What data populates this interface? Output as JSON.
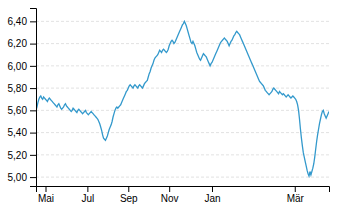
{
  "chart_data": {
    "type": "line",
    "color": "#3399cc",
    "grid": true,
    "ylim": [
      4.92,
      6.52
    ],
    "yticks": [
      {
        "value": 5.0,
        "label": "5,00"
      },
      {
        "value": 5.2,
        "label": "5,20"
      },
      {
        "value": 5.4,
        "label": "5,40"
      },
      {
        "value": 5.6,
        "label": "5,60"
      },
      {
        "value": 5.8,
        "label": "5,80"
      },
      {
        "value": 6.0,
        "label": "6,00"
      },
      {
        "value": 6.2,
        "label": "6,20"
      },
      {
        "value": 6.4,
        "label": "6,40"
      }
    ],
    "categories": [
      null,
      null,
      null,
      null,
      null,
      null,
      null,
      null,
      null,
      null,
      "Mai",
      null,
      null,
      null,
      null,
      null,
      null,
      null,
      null,
      null,
      null,
      null,
      null,
      null,
      null,
      null,
      null,
      null,
      null,
      null,
      null,
      null,
      null,
      null,
      null,
      null,
      null,
      null,
      null,
      null,
      null,
      null,
      null,
      null,
      null,
      null,
      null,
      null,
      null,
      null,
      null,
      null,
      null,
      null,
      "Jul",
      null,
      null,
      null,
      null,
      null,
      null,
      null,
      null,
      null,
      null,
      null,
      null,
      null,
      null,
      null,
      null,
      null,
      null,
      null,
      null,
      null,
      null,
      null,
      null,
      null,
      null,
      null,
      null,
      null,
      null,
      null,
      null,
      null,
      null,
      null,
      null,
      null,
      null,
      null,
      null,
      null,
      null,
      "Sep",
      null,
      null,
      null,
      null,
      null,
      null,
      null,
      null,
      null,
      null,
      null,
      null,
      null,
      null,
      null,
      null,
      null,
      null,
      null,
      null,
      null,
      null,
      null,
      null,
      null,
      null,
      null,
      null,
      null,
      null,
      null,
      null,
      null,
      null,
      null,
      null,
      null,
      null,
      null,
      null,
      null,
      null,
      "Nov",
      null,
      null,
      null,
      null,
      null,
      null,
      null,
      null,
      null,
      null,
      null,
      null,
      null,
      null,
      null,
      null,
      null,
      null,
      null,
      null,
      null,
      null,
      null,
      null,
      null,
      null,
      null,
      null,
      null,
      null,
      null,
      null,
      null,
      null,
      null,
      null,
      null,
      null,
      null,
      null,
      null,
      null,
      null,
      null,
      "Jan",
      null,
      null,
      null,
      null,
      null,
      null,
      null,
      null,
      null,
      null,
      null,
      null,
      null,
      null,
      null,
      null,
      null,
      null,
      null,
      null,
      null,
      null,
      null,
      null,
      null,
      null,
      null,
      null,
      null,
      null,
      null,
      null,
      null,
      null,
      null,
      null,
      null,
      null,
      null,
      null,
      null,
      null,
      null,
      null,
      null,
      null,
      null,
      null,
      null,
      null,
      null,
      null,
      null,
      null,
      null,
      null,
      null,
      null,
      null,
      null,
      null,
      null,
      null,
      null,
      null,
      null,
      null,
      null,
      null,
      null,
      null,
      null,
      null,
      null,
      null,
      null,
      null,
      null,
      null,
      null,
      null,
      null,
      null,
      null,
      null,
      null,
      "Mär",
      null,
      null,
      null,
      null,
      null,
      null,
      null,
      null,
      null,
      null,
      null,
      null,
      null,
      null,
      null,
      null,
      null,
      null,
      null,
      null,
      null,
      null,
      null,
      null,
      null,
      null,
      null,
      null,
      null,
      null,
      null,
      null,
      null,
      null,
      null,
      null
    ],
    "values": [
      5.6,
      5.63,
      5.67,
      5.7,
      5.72,
      5.73,
      5.71,
      5.7,
      5.72,
      5.71,
      5.7,
      5.69,
      5.68,
      5.7,
      5.71,
      5.7,
      5.69,
      5.68,
      5.67,
      5.66,
      5.65,
      5.64,
      5.63,
      5.65,
      5.66,
      5.64,
      5.62,
      5.61,
      5.62,
      5.63,
      5.65,
      5.66,
      5.64,
      5.63,
      5.62,
      5.61,
      5.6,
      5.59,
      5.6,
      5.62,
      5.61,
      5.6,
      5.59,
      5.58,
      5.6,
      5.61,
      5.6,
      5.59,
      5.58,
      5.57,
      5.58,
      5.59,
      5.6,
      5.58,
      5.57,
      5.56,
      5.57,
      5.58,
      5.59,
      5.58,
      5.57,
      5.56,
      5.55,
      5.54,
      5.53,
      5.52,
      5.5,
      5.48,
      5.45,
      5.42,
      5.38,
      5.35,
      5.34,
      5.33,
      5.35,
      5.37,
      5.4,
      5.43,
      5.45,
      5.47,
      5.5,
      5.54,
      5.57,
      5.6,
      5.62,
      5.63,
      5.62,
      5.63,
      5.64,
      5.65,
      5.67,
      5.69,
      5.71,
      5.73,
      5.75,
      5.77,
      5.78,
      5.8,
      5.82,
      5.83,
      5.82,
      5.81,
      5.8,
      5.82,
      5.83,
      5.82,
      5.81,
      5.8,
      5.82,
      5.83,
      5.82,
      5.81,
      5.8,
      5.82,
      5.84,
      5.85,
      5.86,
      5.87,
      5.9,
      5.93,
      5.95,
      5.98,
      6.0,
      6.02,
      6.05,
      6.07,
      6.08,
      6.09,
      6.1,
      6.12,
      6.14,
      6.13,
      6.12,
      6.14,
      6.15,
      6.14,
      6.13,
      6.12,
      6.13,
      6.15,
      6.18,
      6.2,
      6.22,
      6.23,
      6.22,
      6.2,
      6.21,
      6.23,
      6.25,
      6.27,
      6.29,
      6.31,
      6.33,
      6.35,
      6.37,
      6.38,
      6.4,
      6.38,
      6.36,
      6.33,
      6.3,
      6.27,
      6.24,
      6.21,
      6.2,
      6.22,
      6.2,
      6.18,
      6.15,
      6.12,
      6.1,
      6.08,
      6.06,
      6.05,
      6.07,
      6.09,
      6.11,
      6.1,
      6.09,
      6.08,
      6.06,
      6.04,
      6.02,
      6.0,
      6.02,
      6.03,
      6.05,
      6.07,
      6.09,
      6.11,
      6.13,
      6.15,
      6.17,
      6.19,
      6.21,
      6.22,
      6.23,
      6.24,
      6.25,
      6.24,
      6.23,
      6.22,
      6.2,
      6.18,
      6.2,
      6.22,
      6.23,
      6.25,
      6.27,
      6.28,
      6.3,
      6.31,
      6.3,
      6.29,
      6.28,
      6.26,
      6.24,
      6.22,
      6.2,
      6.18,
      6.16,
      6.14,
      6.12,
      6.1,
      6.08,
      6.06,
      6.04,
      6.02,
      6.0,
      5.98,
      5.96,
      5.94,
      5.92,
      5.9,
      5.88,
      5.86,
      5.85,
      5.84,
      5.83,
      5.82,
      5.8,
      5.78,
      5.77,
      5.76,
      5.75,
      5.74,
      5.75,
      5.76,
      5.77,
      5.79,
      5.8,
      5.79,
      5.78,
      5.77,
      5.76,
      5.75,
      5.77,
      5.76,
      5.75,
      5.74,
      5.75,
      5.74,
      5.73,
      5.72,
      5.73,
      5.74,
      5.73,
      5.72,
      5.71,
      5.72,
      5.73,
      5.72,
      5.71,
      5.7,
      5.68,
      5.65,
      5.6,
      5.52,
      5.43,
      5.35,
      5.28,
      5.22,
      5.18,
      5.14,
      5.1,
      5.06,
      5.03,
      5.01,
      5.05,
      5.02,
      5.05,
      5.08,
      5.12,
      5.18,
      5.25,
      5.32,
      5.38,
      5.43,
      5.48,
      5.52,
      5.56,
      5.59,
      5.6,
      5.57,
      5.55,
      5.53,
      5.55,
      5.57,
      5.59
    ]
  }
}
